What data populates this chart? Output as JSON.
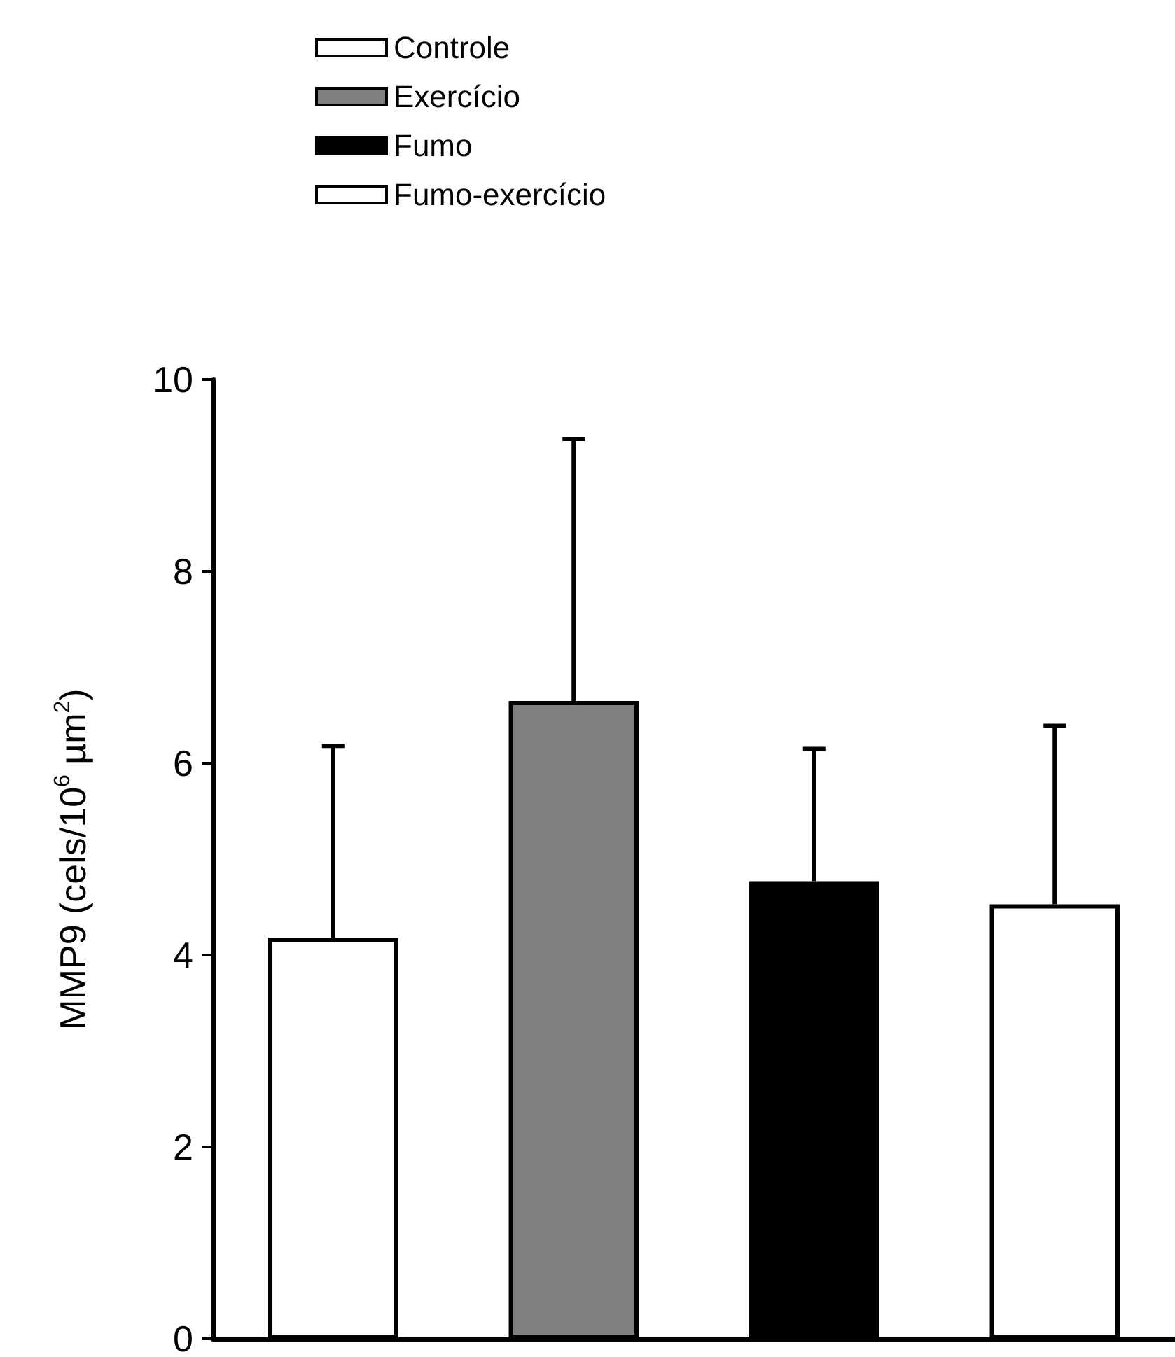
{
  "chart_data": {
    "type": "bar",
    "ylabel": "MMP9 (cels/10$^{6}$ µm$^{2}$)",
    "categories": [
      null,
      null,
      null,
      null
    ],
    "series": [
      {
        "name": "Controle",
        "color": "#ffffff",
        "values": [
          4.18,
          null,
          null,
          null
        ],
        "errors": [
          [
            4.18,
            6.18
          ],
          null,
          null,
          null
        ]
      },
      {
        "name": "Exercício",
        "color": "#808080",
        "values": [
          null,
          6.65,
          null,
          null
        ],
        "errors": [
          null,
          [
            6.65,
            9.38
          ],
          null,
          null
        ]
      },
      {
        "name": "Fumo",
        "color": "#000000",
        "values": [
          null,
          null,
          4.77,
          null
        ],
        "errors": [
          null,
          null,
          [
            4.77,
            6.15
          ],
          null
        ]
      },
      {
        "name": "Fumo-exercício",
        "color": "#ffffff",
        "values": [
          null,
          null,
          null,
          4.53
        ],
        "errors": [
          null,
          null,
          null,
          [
            4.53,
            6.39
          ]
        ]
      }
    ],
    "ylim": [
      0,
      10
    ],
    "yticks": [
      0,
      2,
      4,
      6,
      8,
      10
    ],
    "grid": false,
    "legend": "top left"
  }
}
